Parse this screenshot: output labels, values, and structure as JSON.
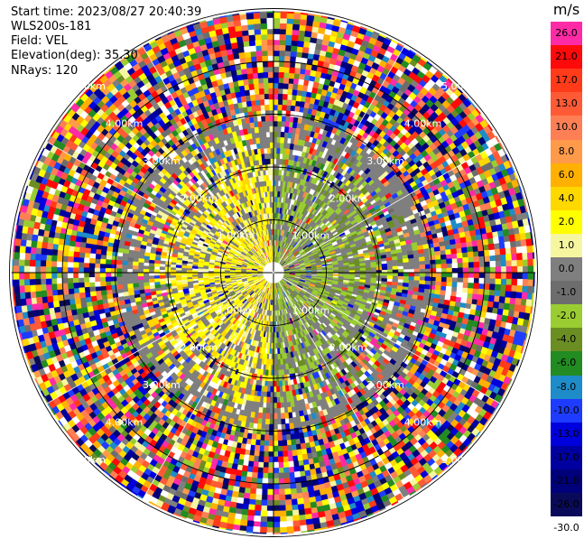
{
  "header": {
    "start_time": "Start time: 2023/08/27 20:40:39",
    "instrument": "WLS200s-181",
    "field": "Field: VEL",
    "elevation": "Elevation(deg): 35.30",
    "nrays": "NRays: 120"
  },
  "chart_data": {
    "type": "heatmap",
    "projection": "polar-ppi",
    "field": "VEL",
    "units": "m/s",
    "nrays": 120,
    "elevation_deg": 35.3,
    "range_rings_km": [
      1,
      2,
      3,
      4,
      5
    ],
    "ring_labels": [
      "1.00km",
      "2.00km",
      "3.00km",
      "4.00km",
      "5.00km"
    ],
    "max_range_km": 7.2,
    "spokes_deg": [
      0,
      30,
      60,
      90,
      120,
      150,
      180,
      210,
      240,
      270,
      300,
      330
    ],
    "near_field": {
      "positive_side": "west",
      "positive_value_ms": 3.0,
      "negative_value_ms": -3.0,
      "clear_radius_km": 1.9,
      "transition_km": 2.9
    },
    "colorbar": {
      "title": "m/s",
      "tick_labels": [
        "26.0",
        "21.0",
        "17.0",
        "13.0",
        "10.0",
        "8.0",
        "6.0",
        "4.0",
        "2.0",
        "1.0",
        "0.0",
        "-1.0",
        "-2.0",
        "-4.0",
        "-6.0",
        "-8.0",
        "-10.0",
        "-13.0",
        "-17.0",
        "-21.0",
        "-26.0",
        "-30.0"
      ],
      "cells": [
        {
          "color": "#ff2ba6",
          "label": "26.0"
        },
        {
          "color": "#ff0a0a",
          "label": "21.0"
        },
        {
          "color": "#ff3b1a",
          "label": "17.0"
        },
        {
          "color": "#ff5a36",
          "label": "13.0"
        },
        {
          "color": "#ff7f55",
          "label": "10.0"
        },
        {
          "color": "#ff9a4a",
          "label": "8.0"
        },
        {
          "color": "#ffb000",
          "label": "6.0"
        },
        {
          "color": "#ffd800",
          "label": "4.0"
        },
        {
          "color": "#ffff00",
          "label": "2.0"
        },
        {
          "color": "#f6f6a0",
          "label": "1.0"
        },
        {
          "color": "#7f7f7f",
          "label": "0.0"
        },
        {
          "color": "#6d6d6d",
          "label": "-1.0"
        },
        {
          "color": "#9acd32",
          "label": "-2.0"
        },
        {
          "color": "#6b8e23",
          "label": "-4.0"
        },
        {
          "color": "#228b22",
          "label": "-6.0"
        },
        {
          "color": "#1e8cc8",
          "label": "-8.0"
        },
        {
          "color": "#1e3cff",
          "label": "-10.0"
        },
        {
          "color": "#0000dd",
          "label": "-13.0"
        },
        {
          "color": "#0000a0",
          "label": "-17.0"
        },
        {
          "color": "#00007a",
          "label": "-21.0"
        },
        {
          "color": "#0a0a5a",
          "label": "-26.0"
        },
        {
          "color": "#ffffff",
          "label": "-30.0"
        }
      ]
    }
  }
}
